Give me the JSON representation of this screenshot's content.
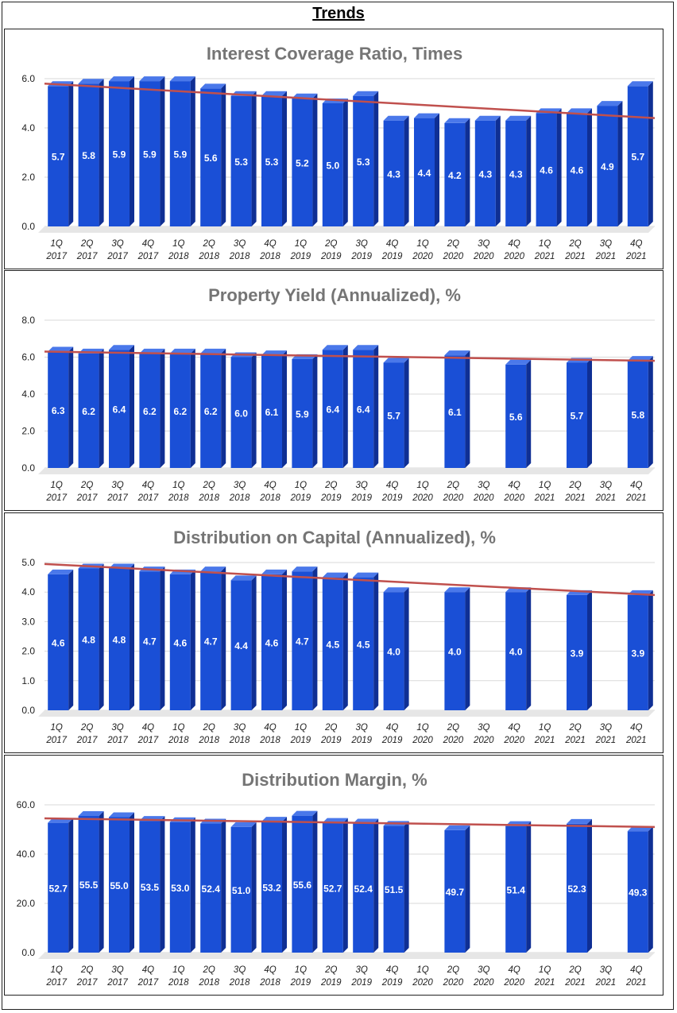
{
  "page": {
    "title": "Trends"
  },
  "colors": {
    "bar_front": "#1a4fd6",
    "bar_side": "#0f2f94",
    "bar_top": "#4a78ea",
    "trend": "#c0504d",
    "grid": "#d9d9d9",
    "floor": "#e6e6e6"
  },
  "categories": [
    "1Q 2017",
    "2Q 2017",
    "3Q 2017",
    "4Q 2017",
    "1Q 2018",
    "2Q 2018",
    "3Q 2018",
    "4Q 2018",
    "1Q 2019",
    "2Q 2019",
    "3Q 2019",
    "4Q 2019",
    "1Q 2020",
    "2Q 2020",
    "3Q 2020",
    "4Q 2020",
    "1Q 2021",
    "2Q 2021",
    "3Q 2021",
    "4Q 2021"
  ],
  "chart_data": [
    {
      "type": "bar",
      "title": "Interest Coverage Ratio, Times",
      "ylim": [
        0,
        6
      ],
      "yticks": [
        "0.0",
        "2.0",
        "4.0",
        "6.0"
      ],
      "values": [
        5.7,
        5.8,
        5.9,
        5.9,
        5.9,
        5.6,
        5.3,
        5.3,
        5.2,
        5.0,
        5.3,
        4.3,
        4.4,
        4.2,
        4.3,
        4.3,
        4.6,
        4.6,
        4.9,
        5.7
      ],
      "labels": [
        "5.7",
        "5.8",
        "5.9",
        "5.9",
        "5.9",
        "5.6",
        "5.3",
        "5.3",
        "5.2",
        "5.0",
        "5.3",
        "4.3",
        "4.4",
        "4.2",
        "4.3",
        "4.3",
        "4.6",
        "4.6",
        "4.9",
        "5.7"
      ],
      "trendline": {
        "start": 5.8,
        "end": 4.4
      }
    },
    {
      "type": "bar",
      "title": "Property Yield (Annualized), %",
      "ylim": [
        0,
        8
      ],
      "yticks": [
        "0.0",
        "2.0",
        "4.0",
        "6.0",
        "8.0"
      ],
      "values": [
        6.3,
        6.2,
        6.4,
        6.2,
        6.2,
        6.2,
        6.0,
        6.1,
        5.9,
        6.4,
        6.4,
        5.7,
        null,
        6.1,
        null,
        5.6,
        null,
        5.7,
        null,
        5.8
      ],
      "labels": [
        "6.3",
        "6.2",
        "6.4",
        "6.2",
        "6.2",
        "6.2",
        "6.0",
        "6.1",
        "5.9",
        "6.4",
        "6.4",
        "5.7",
        "",
        "6.1",
        "",
        "5.6",
        "",
        "5.7",
        "",
        "5.8"
      ],
      "trendline": {
        "start": 6.3,
        "end": 5.8
      }
    },
    {
      "type": "bar",
      "title": "Distribution on Capital (Annualized), %",
      "ylim": [
        0,
        5
      ],
      "yticks": [
        "0.0",
        "1.0",
        "2.0",
        "3.0",
        "4.0",
        "5.0"
      ],
      "values": [
        4.6,
        4.8,
        4.8,
        4.7,
        4.6,
        4.7,
        4.4,
        4.6,
        4.7,
        4.5,
        4.5,
        4.0,
        null,
        4.0,
        null,
        4.0,
        null,
        3.9,
        null,
        3.9
      ],
      "labels": [
        "4.6",
        "4.8",
        "4.8",
        "4.7",
        "4.6",
        "4.7",
        "4.4",
        "4.6",
        "4.7",
        "4.5",
        "4.5",
        "4.0",
        "",
        "4.0",
        "",
        "4.0",
        "",
        "3.9",
        "",
        "3.9"
      ],
      "trendline": {
        "start": 4.95,
        "end": 3.9
      }
    },
    {
      "type": "bar",
      "title": "Distribution Margin, %",
      "ylim": [
        0,
        60
      ],
      "yticks": [
        "0.0",
        "20.0",
        "40.0",
        "60.0"
      ],
      "values": [
        52.7,
        55.5,
        55.0,
        53.5,
        53.0,
        52.4,
        51.0,
        53.2,
        55.6,
        52.7,
        52.4,
        51.5,
        null,
        49.7,
        null,
        51.4,
        null,
        52.3,
        null,
        49.3
      ],
      "labels": [
        "52.7",
        "55.5",
        "55.0",
        "53.5",
        "53.0",
        "52.4",
        "51.0",
        "53.2",
        "55.6",
        "52.7",
        "52.4",
        "51.5",
        "",
        "49.7",
        "",
        "51.4",
        "",
        "52.3",
        "",
        "49.3"
      ],
      "trendline": {
        "start": 54.5,
        "end": 51.0
      }
    }
  ]
}
